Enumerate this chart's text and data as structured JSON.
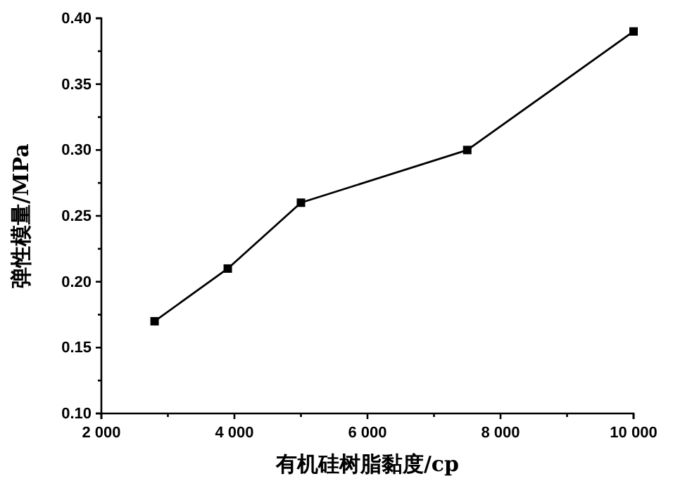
{
  "chart_data": {
    "type": "line",
    "xlabel": "有机硅树脂黏度/cp",
    "ylabel": "弹性模量/MPa",
    "x": [
      2800,
      3900,
      5000,
      7500,
      10000
    ],
    "series": [
      {
        "color": "#000000",
        "values": [
          0.17,
          0.21,
          0.26,
          0.3,
          0.39
        ]
      }
    ],
    "xlim": [
      2000,
      10000
    ],
    "xticks": [
      {
        "value": 2000,
        "label": "2 000"
      },
      {
        "value": 3000,
        "label": null
      },
      {
        "value": 4000,
        "label": "4 000"
      },
      {
        "value": 5000,
        "label": null
      },
      {
        "value": 6000,
        "label": "6 000"
      },
      {
        "value": 7000,
        "label": null
      },
      {
        "value": 8000,
        "label": "8 000"
      },
      {
        "value": 9000,
        "label": null
      },
      {
        "value": 10000,
        "label": "10 000"
      }
    ],
    "ylim": [
      0.1,
      0.4
    ],
    "yticks": [
      {
        "value": 0.1,
        "label": "0.10"
      },
      {
        "value": 0.125,
        "label": null
      },
      {
        "value": 0.15,
        "label": "0.15"
      },
      {
        "value": 0.175,
        "label": null
      },
      {
        "value": 0.2,
        "label": "0.20"
      },
      {
        "value": 0.225,
        "label": null
      },
      {
        "value": 0.25,
        "label": "0.25"
      },
      {
        "value": 0.275,
        "label": null
      },
      {
        "value": 0.3,
        "label": "0.30"
      },
      {
        "value": 0.325,
        "label": null
      },
      {
        "value": 0.35,
        "label": "0.35"
      },
      {
        "value": 0.375,
        "label": null
      },
      {
        "value": 0.4,
        "label": "0.40"
      }
    ],
    "marker": "square",
    "line_style": "solid"
  }
}
